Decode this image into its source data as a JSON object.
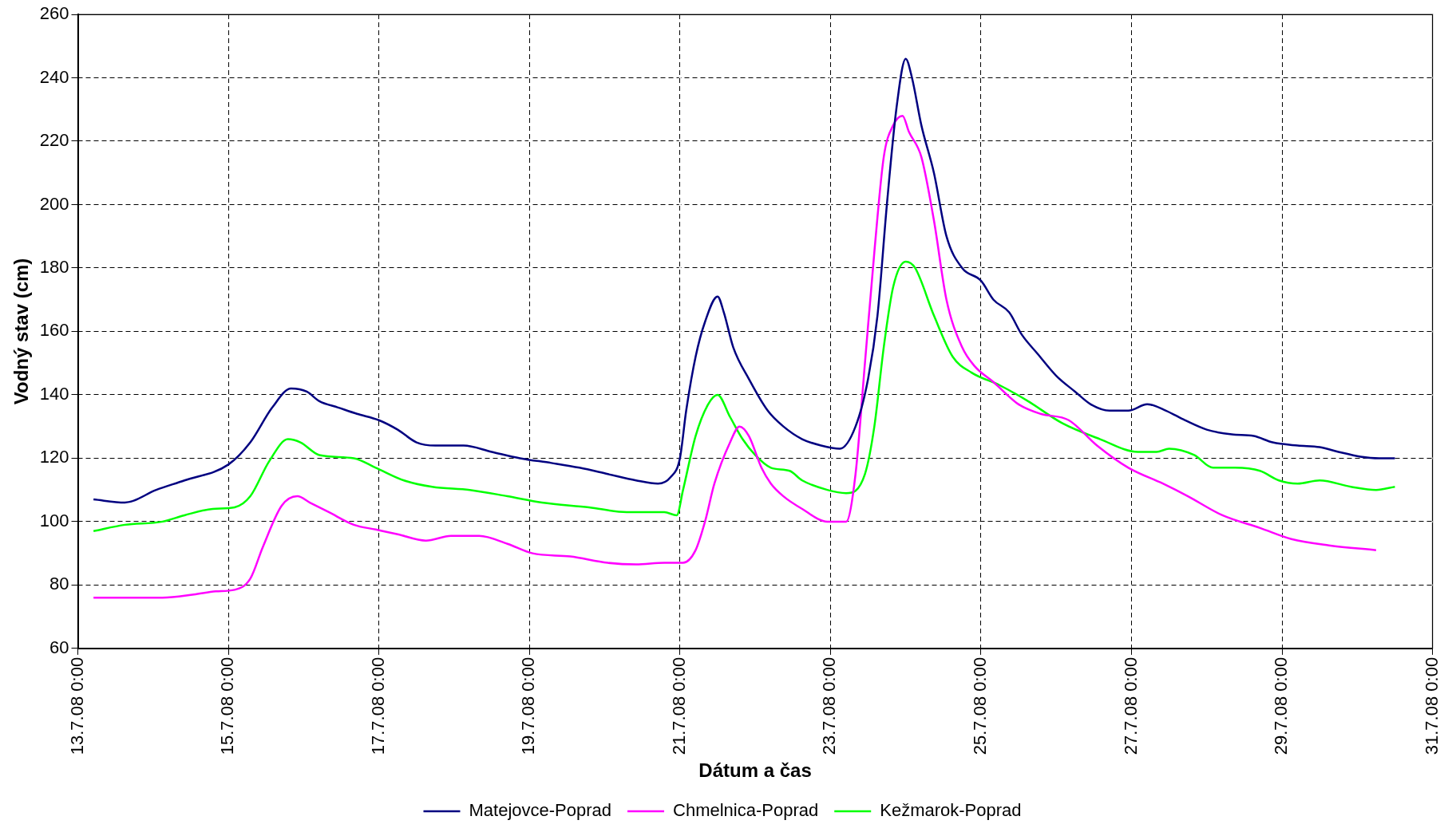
{
  "chart_data": {
    "type": "line",
    "xlabel": "Dátum a čas",
    "ylabel": "Vodný stav (cm)",
    "xlim": [
      "--07-13T00:00",
      "--07-31T00:00"
    ],
    "xticks": [
      {
        "value": "--07-13T00:00",
        "label": "13.7.08 0:00"
      },
      {
        "value": "--07-15T00:00",
        "label": "15.7.08 0:00"
      },
      {
        "value": "--07-17T00:00",
        "label": "17.7.08 0:00"
      },
      {
        "value": "--07-19T00:00",
        "label": "19.7.08 0:00"
      },
      {
        "value": "--07-21T00:00",
        "label": "21.7.08 0:00"
      },
      {
        "value": "--07-23T00:00",
        "label": "23.7.08 0:00"
      },
      {
        "value": "--07-25T00:00",
        "label": "25.7.08 0:00"
      },
      {
        "value": "--07-27T00:00",
        "label": "27.7.08 0:00"
      },
      {
        "value": "--07-29T00:00",
        "label": "29.7.08 0:00"
      },
      {
        "value": "--07-31T00:00",
        "label": "31.7.08 0:00"
      }
    ],
    "ylim": [
      60,
      260
    ],
    "yticks": [
      60,
      80,
      100,
      120,
      140,
      160,
      180,
      200,
      220,
      240,
      260
    ],
    "grid": true,
    "legend": "bottom",
    "marker": "none",
    "line_style": "solid",
    "series": [
      {
        "name": "Matejovce-Poprad",
        "color": "#000080",
        "x": [
          "--07-13T05:00",
          "--07-13T15:00",
          "--07-14T01:00",
          "--07-14T10:00",
          "--07-15T00:00",
          "--07-15T07:00",
          "--07-15T14:00",
          "--07-15T20:00",
          "--07-16T01:00",
          "--07-16T05:00",
          "--07-16T11:00",
          "--07-16T17:00",
          "--07-17T00:00",
          "--07-17T06:00",
          "--07-17T12:00",
          "--07-17T18:00",
          "--07-18T03:00",
          "--07-18T12:00",
          "--07-18T21:00",
          "--07-19T07:00",
          "--07-19T16:00",
          "--07-20T01:00",
          "--07-20T10:00",
          "--07-20T17:00",
          "--07-20T21:00",
          "--07-21T00:00",
          "--07-21T02:00",
          "--07-21T05:00",
          "--07-21T08:00",
          "--07-21T12:00",
          "--07-21T14:00",
          "--07-21T17:00",
          "--07-21T22:00",
          "--07-22T04:00",
          "--07-22T09:00",
          "--07-22T15:00",
          "--07-22T21:00",
          "--07-23T03:00",
          "--07-23T08:00",
          "--07-23T12:00",
          "--07-23T15:00",
          "--07-23T18:00",
          "--07-23T21:00",
          "--07-24T00:00",
          "--07-24T02:00",
          "--07-24T05:00",
          "--07-24T09:00",
          "--07-24T13:00",
          "--07-24T18:00",
          "--07-25T00:00",
          "--07-25T04:00",
          "--07-25T09:00",
          "--07-25T13:00",
          "--07-25T18:00",
          "--07-26T00:00",
          "--07-26T06:00",
          "--07-26T11:00",
          "--07-26T17:00",
          "--07-26T23:00",
          "--07-27T05:00",
          "--07-27T11:00",
          "--07-27T17:00",
          "--07-28T00:00",
          "--07-28T08:00",
          "--07-28T15:00",
          "--07-28T21:00",
          "--07-29T05:00",
          "--07-29T12:00",
          "--07-29T18:00",
          "--07-30T01:00",
          "--07-30T07:00",
          "--07-30T12:00"
        ],
        "values": [
          107,
          106,
          110,
          113,
          118,
          125,
          136,
          142,
          141,
          138,
          136,
          134,
          132,
          129,
          125,
          124,
          124,
          122,
          120,
          118.5,
          117,
          115,
          113,
          112,
          114,
          120,
          135,
          152,
          163,
          171,
          166,
          155,
          145,
          135,
          130,
          126,
          124,
          123,
          130,
          145,
          165,
          200,
          230,
          246,
          240,
          225,
          210,
          190,
          180,
          176,
          170,
          166,
          159,
          153,
          146,
          141,
          137,
          135,
          135,
          137,
          135,
          132,
          129,
          127.5,
          127,
          125,
          124,
          123.5,
          122,
          120.5,
          120,
          120
        ]
      },
      {
        "name": "Chmelnica-Poprad",
        "color": "#ff00ff",
        "x": [
          "--07-13T05:00",
          "--07-14T03:00",
          "--07-14T13:00",
          "--07-14T20:00",
          "--07-15T02:00",
          "--07-15T07:00",
          "--07-15T11:00",
          "--07-15T17:00",
          "--07-15T22:00",
          "--07-16T02:00",
          "--07-16T08:00",
          "--07-16T16:00",
          "--07-16T23:00",
          "--07-17T06:00",
          "--07-17T15:00",
          "--07-17T23:00",
          "--07-18T08:00",
          "--07-18T17:00",
          "--07-19T01:00",
          "--07-19T13:00",
          "--07-20T01:00",
          "--07-20T10:00",
          "--07-20T19:00",
          "--07-21T01:00",
          "--07-21T05:00",
          "--07-21T08:00",
          "--07-21T11:00",
          "--07-21T16:00",
          "--07-21T19:00",
          "--07-21T22:00",
          "--07-22T02:00",
          "--07-22T05:00",
          "--07-22T09:00",
          "--07-22T15:00",
          "--07-22T23:00",
          "--07-23T05:00",
          "--07-23T08:00",
          "--07-23T11:00",
          "--07-23T14:00",
          "--07-23T17:00",
          "--07-23T20:00",
          "--07-23T23:00",
          "--07-24T01:00",
          "--07-24T05:00",
          "--07-24T09:00",
          "--07-24T13:00",
          "--07-24T18:00",
          "--07-24T22:00",
          "--07-25T04:00",
          "--07-25T12:00",
          "--07-25T19:00",
          "--07-26T04:00",
          "--07-26T13:00",
          "--07-26T23:00",
          "--07-27T10:00",
          "--07-27T18:00",
          "--07-28T05:00",
          "--07-28T17:00",
          "--07-29T03:00",
          "--07-29T15:00",
          "--07-30T06:00"
        ],
        "values": [
          76,
          76,
          77,
          78,
          78.5,
          82,
          92,
          105,
          108,
          106,
          103,
          99,
          97.5,
          96,
          94,
          95.5,
          95.5,
          93,
          90,
          89,
          87,
          86.5,
          87,
          87,
          91,
          100,
          112,
          125,
          130,
          127,
          117,
          112,
          108,
          104,
          100,
          100,
          115,
          150,
          185,
          215,
          225,
          228,
          223,
          215,
          195,
          170,
          155,
          149,
          144,
          137,
          134,
          132,
          124,
          117,
          112,
          108,
          102,
          98,
          94.5,
          92.5,
          91
        ]
      },
      {
        "name": "Kežmarok-Poprad",
        "color": "#00ff00",
        "x": [
          "--07-13T05:00",
          "--07-13T15:00",
          "--07-14T03:00",
          "--07-14T10:00",
          "--07-14T19:00",
          "--07-15T02:00",
          "--07-15T07:00",
          "--07-15T13:00",
          "--07-15T19:00",
          "--07-15T23:00",
          "--07-16T05:00",
          "--07-16T16:00",
          "--07-16T23:00",
          "--07-17T08:00",
          "--07-17T17:00",
          "--07-18T05:00",
          "--07-18T17:00",
          "--07-19T04:00",
          "--07-19T19:00",
          "--07-20T07:00",
          "--07-20T19:00",
          "--07-20T23:00",
          "--07-21T01:00",
          "--07-21T05:00",
          "--07-21T09:00",
          "--07-21T12:00",
          "--07-21T16:00",
          "--07-21T20:00",
          "--07-22T00:00",
          "--07-22T05:00",
          "--07-22T11:00",
          "--07-22T15:00",
          "--07-22T23:00",
          "--07-23T05:00",
          "--07-23T11:00",
          "--07-23T14:00",
          "--07-23T17:00",
          "--07-23T20:00",
          "--07-24T00:00",
          "--07-24T03:00",
          "--07-24T09:00",
          "--07-24T15:00",
          "--07-24T21:00",
          "--07-25T06:00",
          "--07-25T15:00",
          "--07-26T02:00",
          "--07-26T14:00",
          "--07-27T02:00",
          "--07-27T08:00",
          "--07-27T12:00",
          "--07-27T20:00",
          "--07-28T02:00",
          "--07-28T09:00",
          "--07-28T17:00",
          "--07-28T23:00",
          "--07-29T05:00",
          "--07-29T12:00",
          "--07-29T22:00",
          "--07-30T06:00",
          "--07-30T12:00"
        ],
        "values": [
          97,
          99,
          100,
          102,
          104,
          104.5,
          108,
          119,
          126,
          125,
          121,
          120,
          117,
          113,
          111,
          110,
          108,
          106,
          104.5,
          103,
          103,
          102,
          110,
          127,
          137,
          140,
          133,
          126,
          121,
          117,
          116,
          113,
          110,
          109,
          115,
          130,
          155,
          174,
          182,
          180,
          165,
          152,
          147,
          143,
          138,
          131,
          126,
          122,
          122,
          123,
          121,
          117,
          117,
          116,
          113,
          112,
          113,
          111,
          110,
          111
        ]
      }
    ]
  }
}
